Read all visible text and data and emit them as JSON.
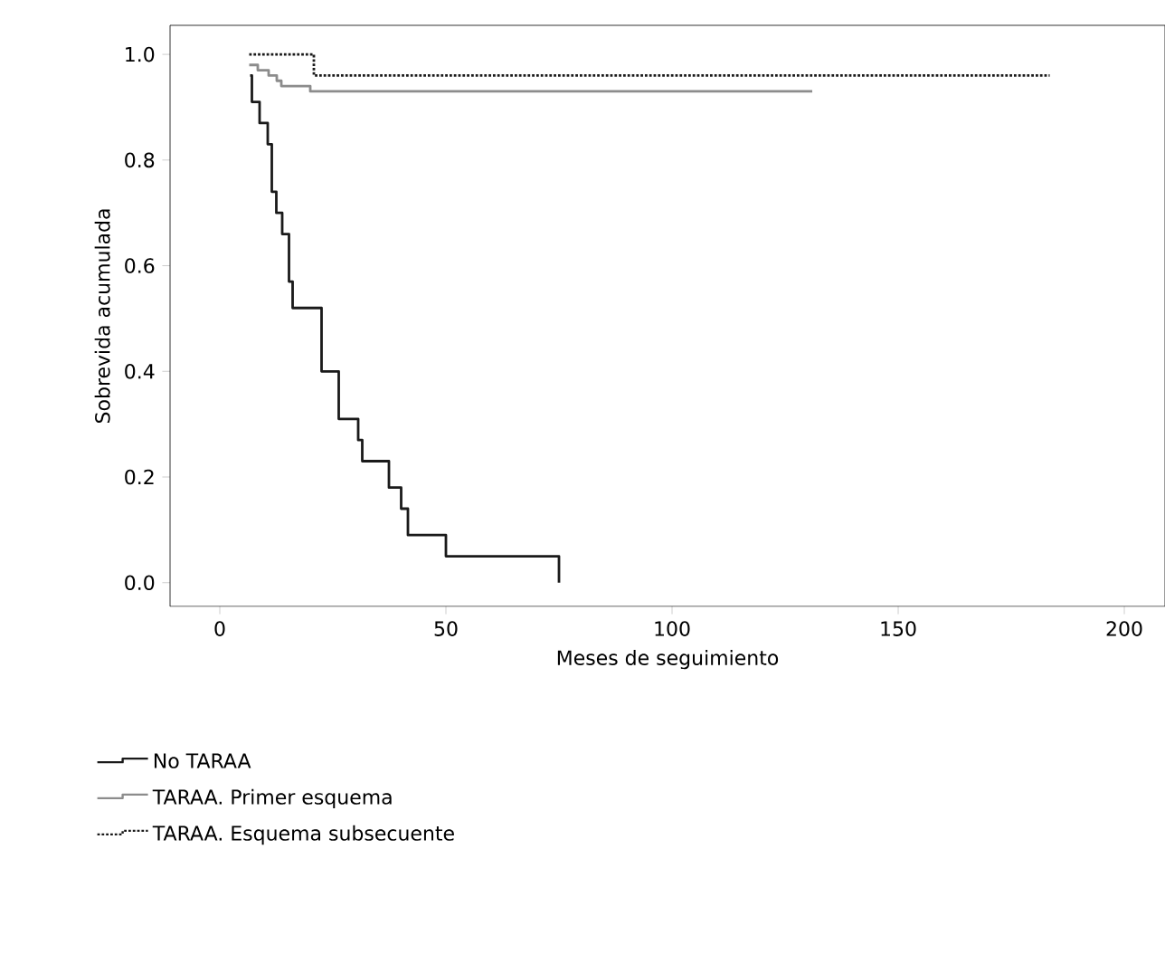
{
  "chart_data": {
    "type": "step",
    "xlabel": "Meses de seguimiento",
    "ylabel": "Sobrevida acumulada",
    "xlim": [
      -11,
      209
    ],
    "ylim": [
      -0.045,
      1.055
    ],
    "xticks": [
      0,
      50,
      100,
      150,
      200
    ],
    "yticks": [
      {
        "value": 0,
        "label": "0.0"
      },
      {
        "value": 0.2,
        "label": "0.2"
      },
      {
        "value": 0.4,
        "label": "0.4"
      },
      {
        "value": 0.6,
        "label": "0.6"
      },
      {
        "value": 0.8,
        "label": "0.8"
      },
      {
        "value": 1,
        "label": "1.0"
      }
    ],
    "legend": "bottom",
    "grid": false,
    "series": [
      {
        "name": "No TARAA",
        "color": "#1a1a1a",
        "line_style": "solid",
        "x": [
          6.7,
          7.1,
          8.8,
          10.6,
          11.5,
          12.5,
          13.8,
          15.3,
          16.1,
          22.5,
          26.3,
          30.6,
          31.5,
          37.4,
          40.1,
          41.6,
          50,
          75
        ],
        "values": [
          0.96,
          0.91,
          0.87,
          0.83,
          0.74,
          0.7,
          0.66,
          0.57,
          0.52,
          0.4,
          0.31,
          0.27,
          0.23,
          0.18,
          0.14,
          0.09,
          0.05,
          0
        ]
      },
      {
        "name": "TARAA. Primer esquema",
        "color": "#8c8c8c",
        "line_style": "solid",
        "x": [
          6.5,
          8.4,
          10.8,
          12.6,
          13.6,
          20,
          131
        ],
        "values": [
          0.98,
          0.97,
          0.96,
          0.95,
          0.94,
          0.93,
          0.93
        ]
      },
      {
        "name": "TARAA. Esquema subsecuente",
        "color": "#1a1a1a",
        "line_style": "dotted",
        "x": [
          6.5,
          20.8,
          183.5
        ],
        "values": [
          1.0,
          0.96,
          0.96
        ]
      }
    ]
  }
}
